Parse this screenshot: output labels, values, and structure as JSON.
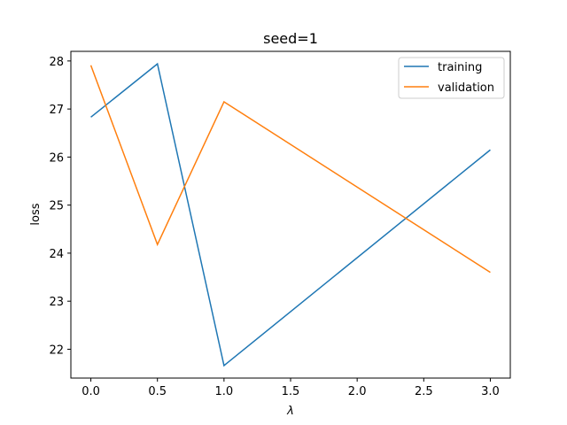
{
  "chart_data": {
    "type": "line",
    "title": "seed=1",
    "xlabel": "λ",
    "ylabel": "loss",
    "x": [
      0.0,
      0.5,
      1.0,
      3.0
    ],
    "series": [
      {
        "name": "training",
        "values": [
          26.83,
          27.94,
          21.66,
          26.15
        ],
        "color": "#1f77b4"
      },
      {
        "name": "validation",
        "values": [
          27.91,
          24.18,
          27.15,
          23.6
        ],
        "color": "#ff7f0e"
      }
    ],
    "xlim": [
      -0.15,
      3.15
    ],
    "ylim": [
      21.4,
      28.2
    ],
    "xticks": [
      0.0,
      0.5,
      1.0,
      1.5,
      2.0,
      2.5,
      3.0
    ],
    "xtick_labels": [
      "0.0",
      "0.5",
      "1.0",
      "1.5",
      "2.0",
      "2.5",
      "3.0"
    ],
    "yticks": [
      22,
      23,
      24,
      25,
      26,
      27,
      28
    ],
    "ytick_labels": [
      "22",
      "23",
      "24",
      "25",
      "26",
      "27",
      "28"
    ],
    "grid": false,
    "legend_position": "top-right"
  }
}
